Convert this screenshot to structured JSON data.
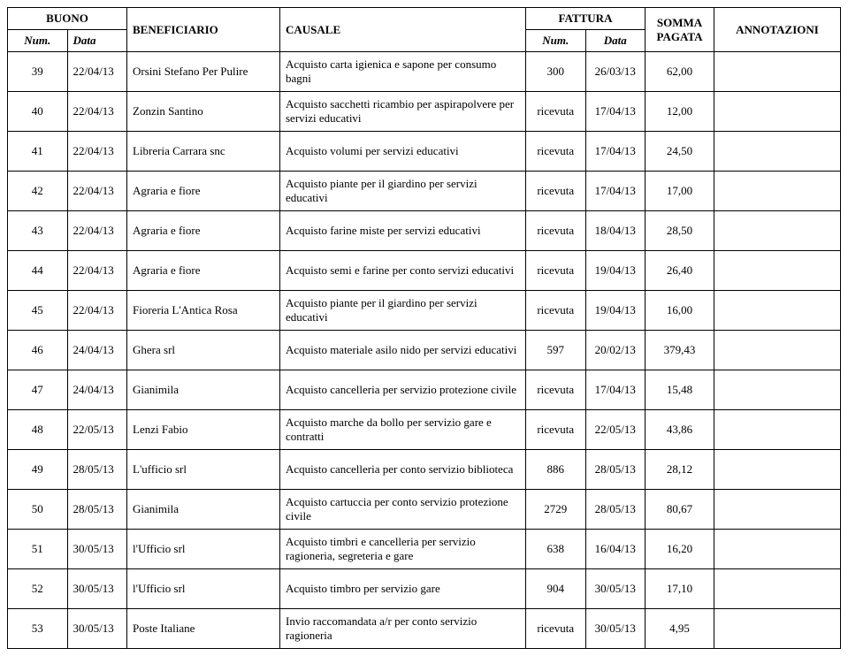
{
  "header": {
    "buono": "BUONO",
    "num": "Num.",
    "data": "Data",
    "beneficiario": "BENEFICIARIO",
    "causale": "CAUSALE",
    "fattura": "FATTURA",
    "somma": "SOMMA PAGATA",
    "annotazioni": "ANNOTAZIONI"
  },
  "rows": [
    {
      "num": "39",
      "data": "22/04/13",
      "benef": "Orsini Stefano Per Pulire",
      "caus": "Acquisto carta igienica e sapone per consumo bagni",
      "fnum": "300",
      "fdata": "26/03/13",
      "somma": "62,00",
      "annot": ""
    },
    {
      "num": "40",
      "data": "22/04/13",
      "benef": "Zonzin Santino",
      "caus": "Acquisto sacchetti ricambio per aspirapolvere per servizi educativi",
      "fnum": "ricevuta",
      "fdata": "17/04/13",
      "somma": "12,00",
      "annot": ""
    },
    {
      "num": "41",
      "data": "22/04/13",
      "benef": "Libreria Carrara snc",
      "caus": "Acquisto volumi per servizi educativi",
      "fnum": "ricevuta",
      "fdata": "17/04/13",
      "somma": "24,50",
      "annot": ""
    },
    {
      "num": "42",
      "data": "22/04/13",
      "benef": "Agraria e fiore",
      "caus": "Acquisto piante per il giardino per servizi educativi",
      "fnum": "ricevuta",
      "fdata": "17/04/13",
      "somma": "17,00",
      "annot": ""
    },
    {
      "num": "43",
      "data": "22/04/13",
      "benef": "Agraria e fiore",
      "caus": "Acquisto farine miste per servizi educativi",
      "fnum": "ricevuta",
      "fdata": "18/04/13",
      "somma": "28,50",
      "annot": ""
    },
    {
      "num": "44",
      "data": "22/04/13",
      "benef": "Agraria e fiore",
      "caus": "Acquisto semi e farine per conto servizi educativi",
      "fnum": "ricevuta",
      "fdata": "19/04/13",
      "somma": "26,40",
      "annot": ""
    },
    {
      "num": "45",
      "data": "22/04/13",
      "benef": "Fioreria L'Antica Rosa",
      "caus": "Acquisto piante per il giardino per servizi educativi",
      "fnum": "ricevuta",
      "fdata": "19/04/13",
      "somma": "16,00",
      "annot": ""
    },
    {
      "num": "46",
      "data": "24/04/13",
      "benef": "Ghera srl",
      "caus": "Acquisto materiale  asilo nido per servizi educativi",
      "fnum": "597",
      "fdata": "20/02/13",
      "somma": "379,43",
      "annot": ""
    },
    {
      "num": "47",
      "data": "24/04/13",
      "benef": "Gianimila",
      "caus": "Acquisto cancelleria per servizio protezione civile",
      "fnum": "ricevuta",
      "fdata": "17/04/13",
      "somma": "15,48",
      "annot": ""
    },
    {
      "num": "48",
      "data": "22/05/13",
      "benef": "Lenzi Fabio",
      "caus": "Acquisto marche da bollo per servizio gare e contratti",
      "fnum": "ricevuta",
      "fdata": "22/05/13",
      "somma": "43,86",
      "annot": ""
    },
    {
      "num": "49",
      "data": "28/05/13",
      "benef": "L'ufficio srl",
      "caus": "Acquisto cancelleria  per conto servizio biblioteca",
      "fnum": "886",
      "fdata": "28/05/13",
      "somma": "28,12",
      "annot": ""
    },
    {
      "num": "50",
      "data": "28/05/13",
      "benef": "Gianimila",
      "caus": "Acquisto cartuccia per conto servizio protezione civile",
      "fnum": "2729",
      "fdata": "28/05/13",
      "somma": "80,67",
      "annot": ""
    },
    {
      "num": "51",
      "data": "30/05/13",
      "benef": "l'Ufficio srl",
      "caus": "Acquisto timbri e cancelleria per servizio ragioneria, segreteria e gare",
      "fnum": "638",
      "fdata": "16/04/13",
      "somma": "16,20",
      "annot": ""
    },
    {
      "num": "52",
      "data": "30/05/13",
      "benef": "l'Ufficio srl",
      "caus": "Acquisto timbro per servizio gare",
      "fnum": "904",
      "fdata": "30/05/13",
      "somma": "17,10",
      "annot": ""
    },
    {
      "num": "53",
      "data": "30/05/13",
      "benef": "Poste Italiane",
      "caus": "Invio raccomandata a/r per conto servizio ragioneria",
      "fnum": "ricevuta",
      "fdata": "30/05/13",
      "somma": "4,95",
      "annot": ""
    }
  ]
}
